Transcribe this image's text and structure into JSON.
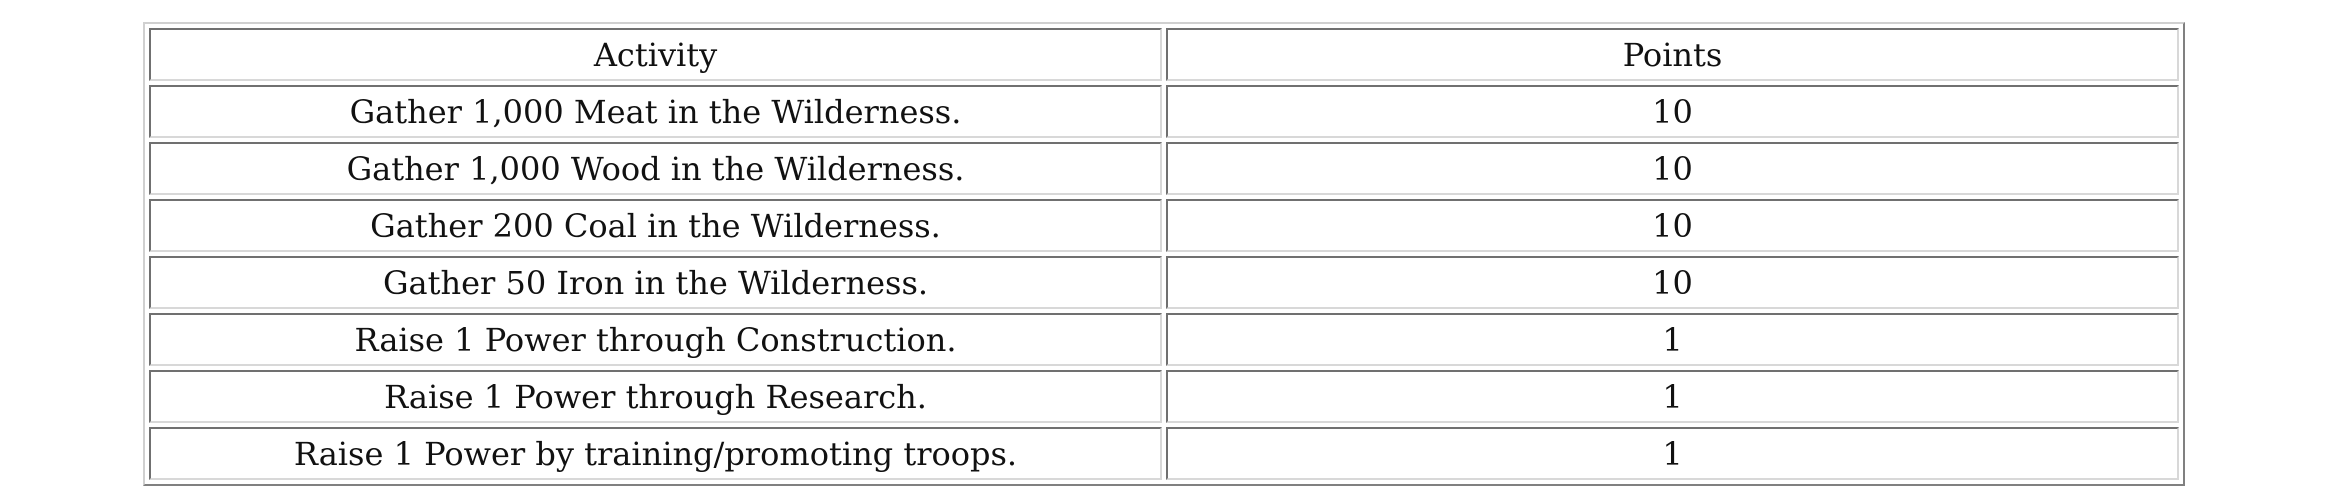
{
  "table": {
    "headers": [
      "Activity",
      "Points"
    ],
    "rows": [
      [
        "Gather 1,000 Meat in the Wilderness.",
        "10"
      ],
      [
        "Gather 1,000 Wood in the Wilderness.",
        "10"
      ],
      [
        "Gather 200 Coal in the Wilderness.",
        "10"
      ],
      [
        "Gather 50 Iron in the Wilderness.",
        "10"
      ],
      [
        "Raise 1 Power through Construction.",
        "1"
      ],
      [
        "Raise 1 Power through Research.",
        "1"
      ],
      [
        "Raise 1 Power by training/promoting troops.",
        "1"
      ]
    ]
  }
}
